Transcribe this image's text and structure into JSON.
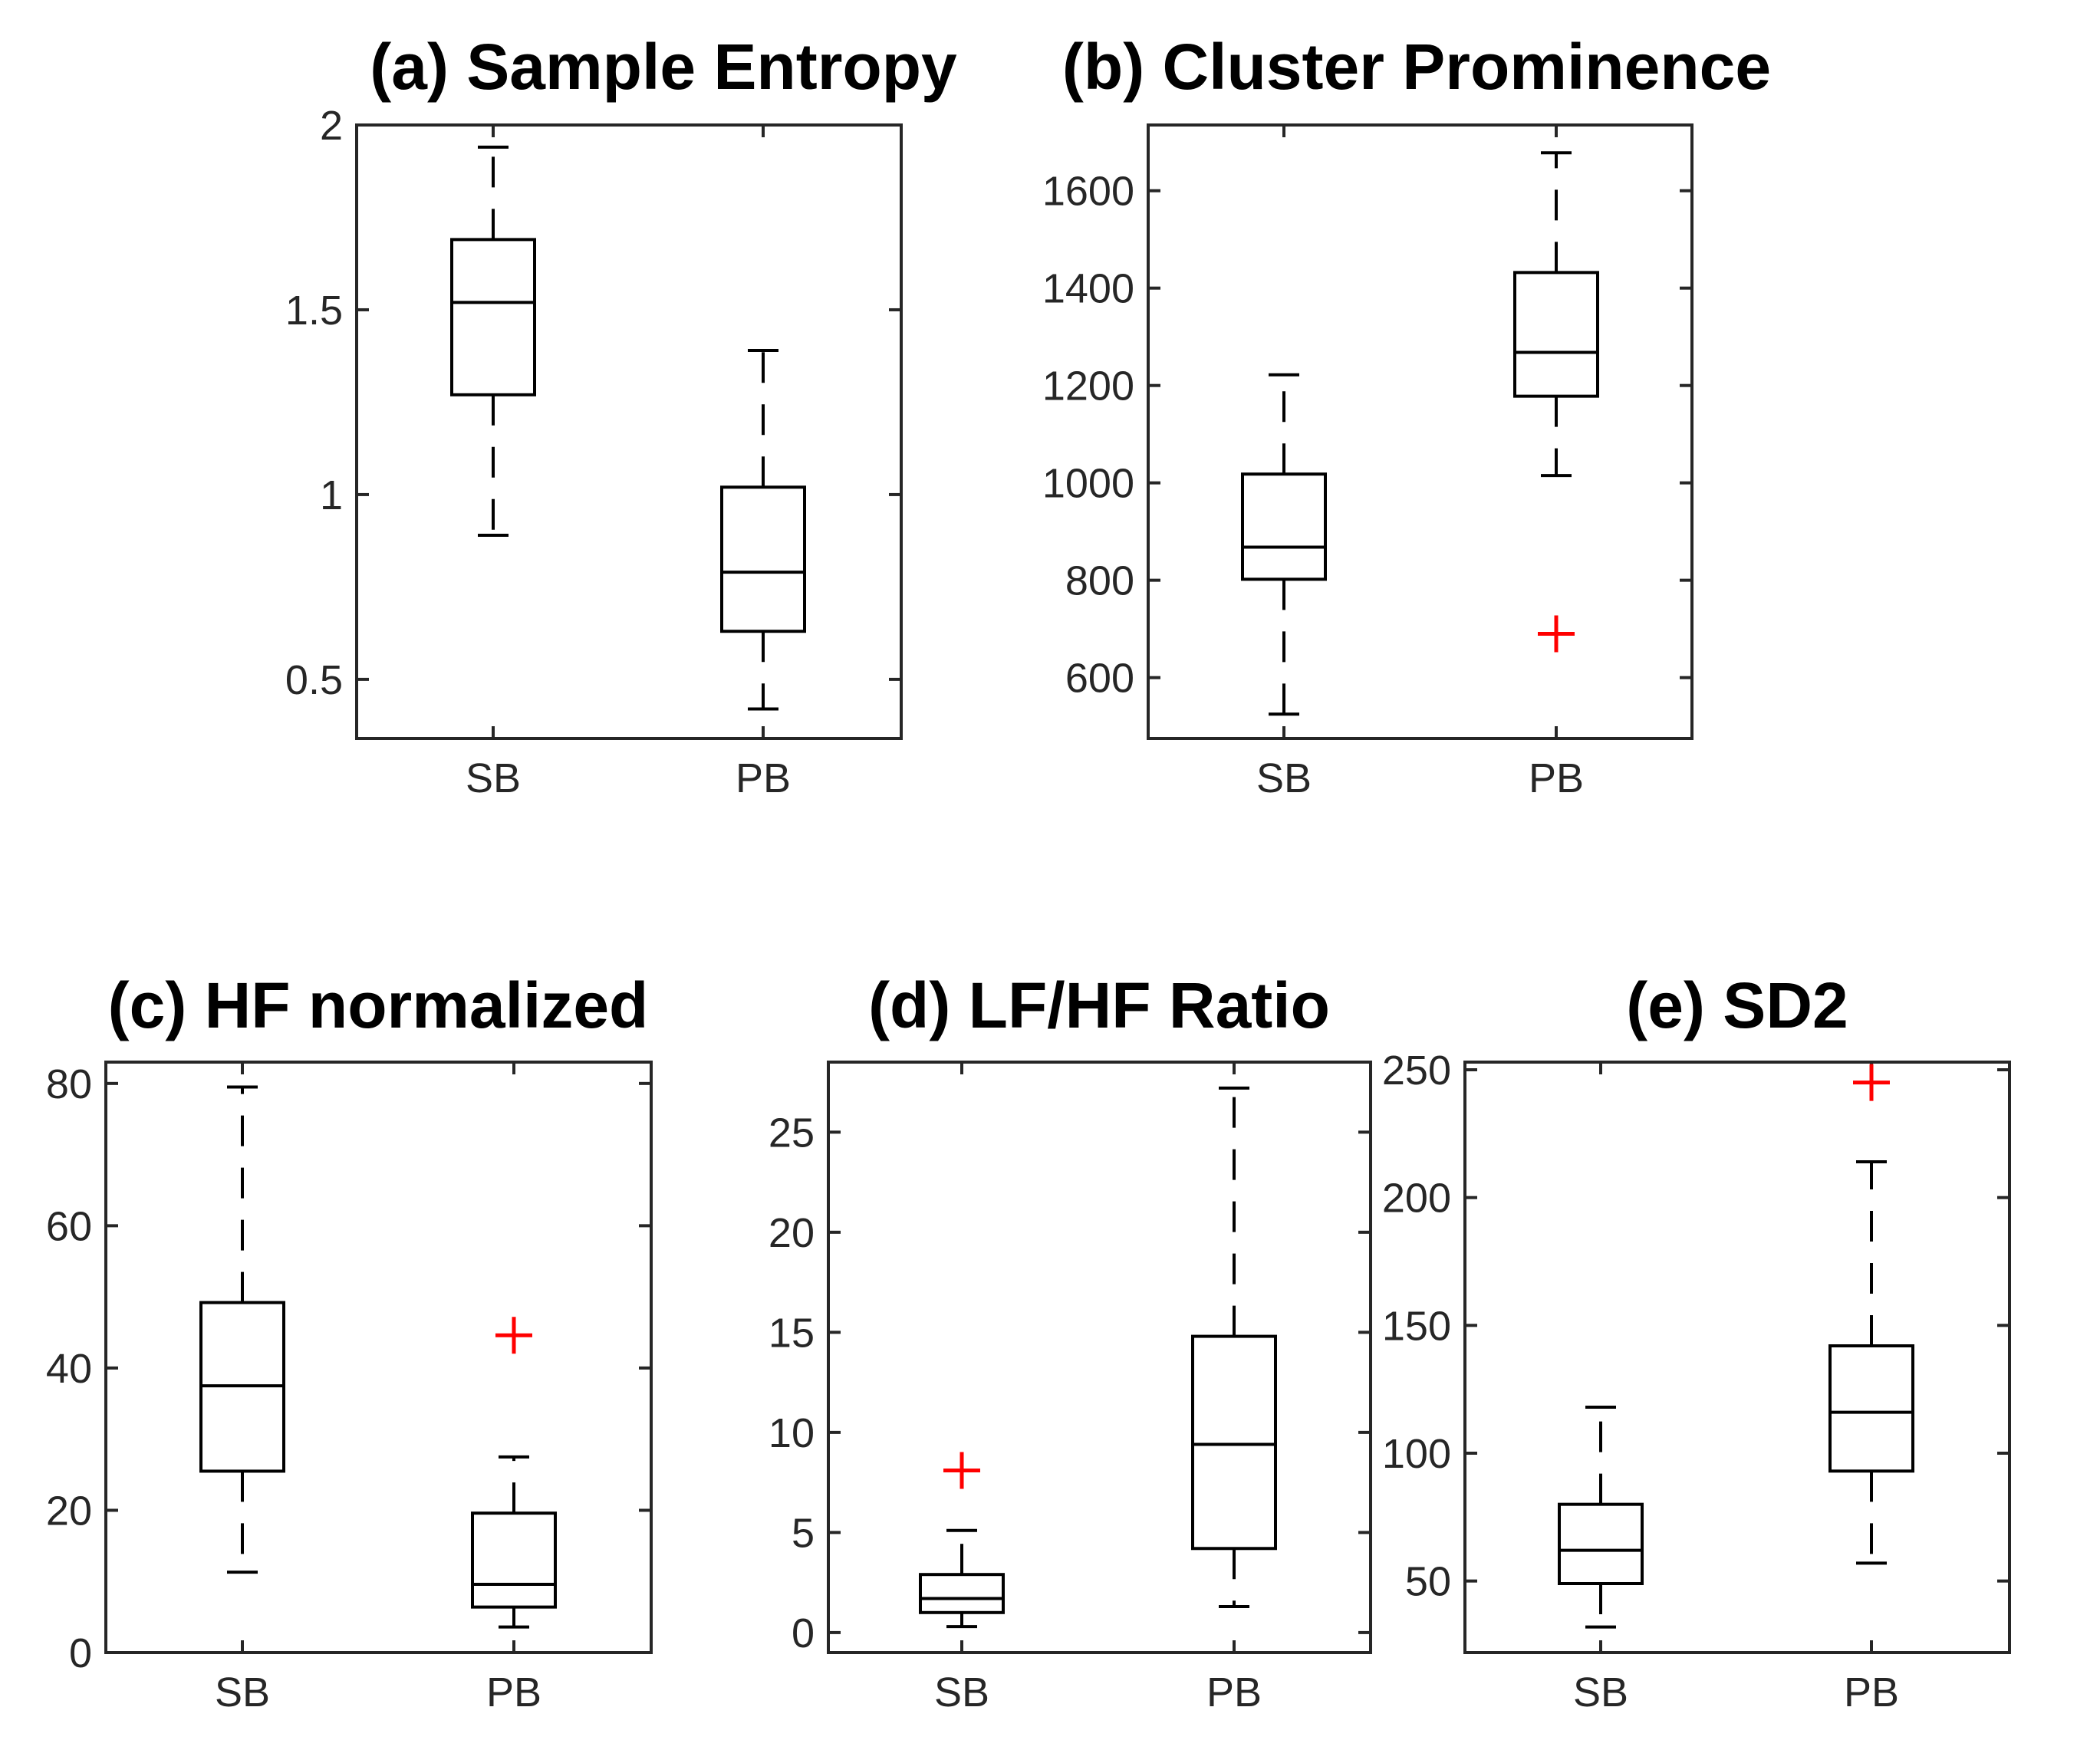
{
  "chart_data": [
    {
      "type": "boxplot",
      "id": "a",
      "title": "(a) Sample Entropy",
      "categories": [
        "SB",
        "PB"
      ],
      "ylim": [
        0.34,
        2.0
      ],
      "yticks": [
        0.5,
        1,
        1.5,
        2
      ],
      "ytick_labels": [
        "0.5",
        "1",
        "1.5",
        "2"
      ],
      "boxes": [
        {
          "category": "SB",
          "min": 0.89,
          "q1": 1.27,
          "median": 1.52,
          "q3": 1.69,
          "max": 1.94,
          "outliers": []
        },
        {
          "category": "PB",
          "min": 0.42,
          "q1": 0.63,
          "median": 0.79,
          "q3": 1.02,
          "max": 1.39,
          "outliers": []
        }
      ]
    },
    {
      "type": "boxplot",
      "id": "b",
      "title": "(b) Cluster Prominence",
      "categories": [
        "SB",
        "PB"
      ],
      "ylim": [
        475,
        1735
      ],
      "yticks": [
        600,
        800,
        1000,
        1200,
        1400,
        1600
      ],
      "ytick_labels": [
        "600",
        "800",
        "1000",
        "1200",
        "1400",
        "1600"
      ],
      "boxes": [
        {
          "category": "SB",
          "min": 525,
          "q1": 802,
          "median": 868,
          "q3": 1018,
          "max": 1222,
          "outliers": []
        },
        {
          "category": "PB",
          "min": 1015,
          "q1": 1178,
          "median": 1268,
          "q3": 1432,
          "max": 1678,
          "outliers": [
            690
          ]
        }
      ]
    },
    {
      "type": "boxplot",
      "id": "c",
      "title": "(c) HF normalized",
      "categories": [
        "SB",
        "PB"
      ],
      "ylim": [
        0,
        83
      ],
      "yticks": [
        0,
        20,
        40,
        60,
        80
      ],
      "ytick_labels": [
        "0",
        "20",
        "40",
        "60",
        "80"
      ],
      "boxes": [
        {
          "category": "SB",
          "min": 11.3,
          "q1": 25.5,
          "median": 37.5,
          "q3": 49.2,
          "max": 79.5,
          "outliers": []
        },
        {
          "category": "PB",
          "min": 3.6,
          "q1": 6.4,
          "median": 9.6,
          "q3": 19.6,
          "max": 27.5,
          "outliers": [
            44.6
          ]
        }
      ]
    },
    {
      "type": "boxplot",
      "id": "d",
      "title": "(d) LF/HF Ratio",
      "categories": [
        "SB",
        "PB"
      ],
      "ylim": [
        -1,
        28.5
      ],
      "yticks": [
        0,
        5,
        10,
        15,
        20,
        25
      ],
      "ytick_labels": [
        "0",
        "5",
        "10",
        "15",
        "20",
        "25"
      ],
      "boxes": [
        {
          "category": "SB",
          "min": 0.3,
          "q1": 1.0,
          "median": 1.7,
          "q3": 2.9,
          "max": 5.1,
          "outliers": [
            8.1
          ]
        },
        {
          "category": "PB",
          "min": 1.3,
          "q1": 4.2,
          "median": 9.4,
          "q3": 14.8,
          "max": 27.2,
          "outliers": []
        }
      ]
    },
    {
      "type": "boxplot",
      "id": "e",
      "title": "(e) SD2",
      "categories": [
        "SB",
        "PB"
      ],
      "ylim": [
        22,
        253
      ],
      "yticks": [
        50,
        100,
        150,
        200,
        250
      ],
      "ytick_labels": [
        "50",
        "100",
        "150",
        "200",
        "250"
      ],
      "boxes": [
        {
          "category": "SB",
          "min": 32,
          "q1": 49,
          "median": 62,
          "q3": 80,
          "max": 118,
          "outliers": []
        },
        {
          "category": "PB",
          "min": 57,
          "q1": 93,
          "median": 116,
          "q3": 142,
          "max": 214,
          "outliers": [
            245
          ]
        }
      ]
    }
  ]
}
